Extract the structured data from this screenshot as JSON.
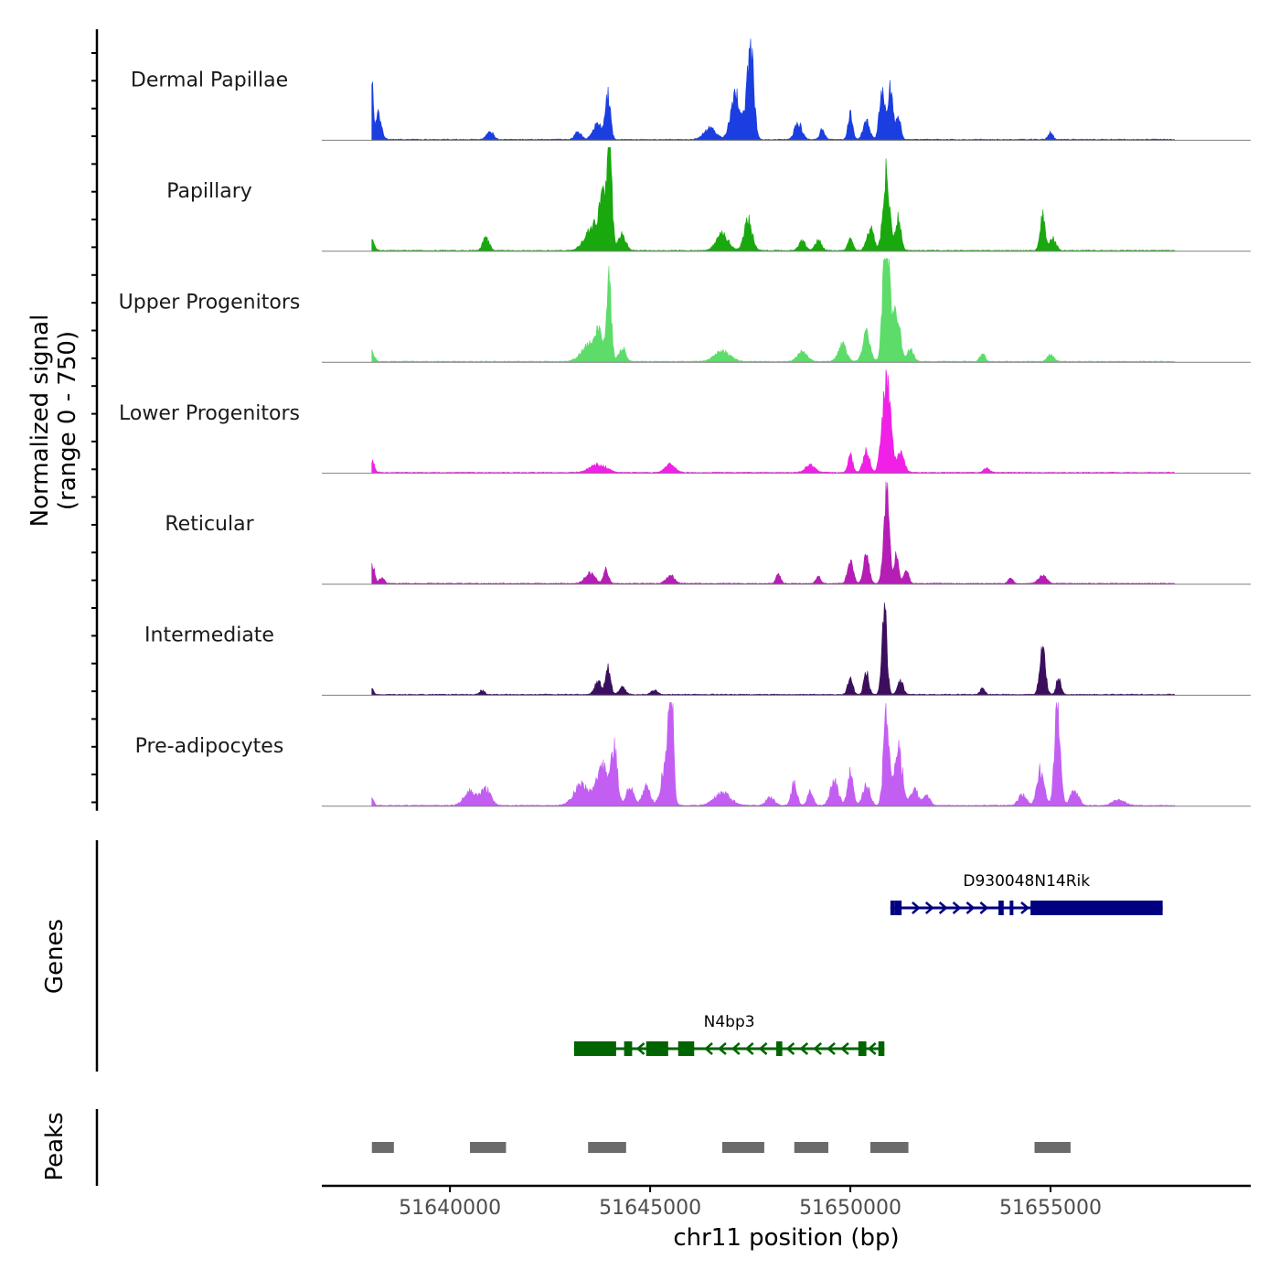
{
  "chart_data": {
    "type": "area",
    "description_kind": "coverage tracks",
    "y_axis_title_line1": "Normalized signal",
    "y_axis_title_line2": "(range 0 - 750)",
    "ylim": [
      0,
      750
    ],
    "x_axis_title": "chr11 position (bp)",
    "xlim": [
      51636800,
      51660000
    ],
    "x_ticks": [
      51640000,
      51645000,
      51650000,
      51655000
    ],
    "x_tick_labels": [
      "51640000",
      "51645000",
      "51650000",
      "51655000"
    ],
    "region_start": 51638050,
    "region_end": 51658100,
    "tracks": [
      {
        "name": "Dermal Papillae",
        "color": "#1a3ee0",
        "peaks": [
          [
            51638050,
            400,
            30
          ],
          [
            51638200,
            180,
            80
          ],
          [
            51641000,
            60,
            80
          ],
          [
            51643200,
            60,
            80
          ],
          [
            51643700,
            110,
            120
          ],
          [
            51643950,
            300,
            60
          ],
          [
            51646500,
            80,
            150
          ],
          [
            51647150,
            310,
            130
          ],
          [
            51647500,
            650,
            85
          ],
          [
            51648700,
            120,
            90
          ],
          [
            51649300,
            80,
            60
          ],
          [
            51650000,
            170,
            60
          ],
          [
            51650400,
            130,
            80
          ],
          [
            51650800,
            380,
            70
          ],
          [
            51651000,
            380,
            60
          ],
          [
            51651200,
            150,
            60
          ],
          [
            51655000,
            50,
            60
          ]
        ]
      },
      {
        "name": "Papillary",
        "color": "#19a80d",
        "peaks": [
          [
            51638050,
            80,
            60
          ],
          [
            51640900,
            90,
            80
          ],
          [
            51643600,
            180,
            200
          ],
          [
            51643800,
            320,
            60
          ],
          [
            51643980,
            820,
            60
          ],
          [
            51644300,
            120,
            90
          ],
          [
            51646800,
            120,
            150
          ],
          [
            51647450,
            220,
            100
          ],
          [
            51648800,
            70,
            80
          ],
          [
            51649200,
            70,
            80
          ],
          [
            51650000,
            100,
            60
          ],
          [
            51650500,
            160,
            90
          ],
          [
            51650900,
            550,
            80
          ],
          [
            51651200,
            230,
            70
          ],
          [
            51654800,
            250,
            60
          ],
          [
            51655050,
            90,
            80
          ]
        ]
      },
      {
        "name": "Upper Progenitors",
        "color": "#5ddc6a",
        "peaks": [
          [
            51638050,
            70,
            60
          ],
          [
            51643500,
            120,
            200
          ],
          [
            51643720,
            180,
            80
          ],
          [
            51643970,
            600,
            60
          ],
          [
            51644300,
            100,
            80
          ],
          [
            51646800,
            70,
            200
          ],
          [
            51648800,
            70,
            120
          ],
          [
            51649800,
            120,
            100
          ],
          [
            51650400,
            200,
            90
          ],
          [
            51650900,
            980,
            80
          ],
          [
            51651150,
            380,
            90
          ],
          [
            51651500,
            90,
            80
          ],
          [
            51653300,
            60,
            60
          ],
          [
            51655000,
            50,
            80
          ]
        ]
      },
      {
        "name": "Lower Progenitors",
        "color": "#f020e6",
        "peaks": [
          [
            51638050,
            90,
            60
          ],
          [
            51643700,
            60,
            200
          ],
          [
            51645500,
            60,
            120
          ],
          [
            51649000,
            50,
            120
          ],
          [
            51650000,
            120,
            60
          ],
          [
            51650400,
            150,
            80
          ],
          [
            51650900,
            700,
            100
          ],
          [
            51651250,
            150,
            90
          ],
          [
            51653400,
            30,
            80
          ]
        ]
      },
      {
        "name": "Reticular",
        "color": "#b41eb4",
        "peaks": [
          [
            51638050,
            150,
            60
          ],
          [
            51638300,
            40,
            60
          ],
          [
            51643500,
            80,
            120
          ],
          [
            51643900,
            100,
            60
          ],
          [
            51645500,
            60,
            100
          ],
          [
            51648200,
            60,
            60
          ],
          [
            51649200,
            50,
            60
          ],
          [
            51650000,
            160,
            70
          ],
          [
            51650400,
            220,
            70
          ],
          [
            51650900,
            650,
            70
          ],
          [
            51651150,
            200,
            60
          ],
          [
            51651400,
            100,
            60
          ],
          [
            51654000,
            40,
            60
          ],
          [
            51654800,
            60,
            100
          ]
        ]
      },
      {
        "name": "Intermediate",
        "color": "#3b0f5e",
        "peaks": [
          [
            51638050,
            50,
            40
          ],
          [
            51643700,
            90,
            90
          ],
          [
            51643950,
            200,
            60
          ],
          [
            51644300,
            50,
            80
          ],
          [
            51645100,
            30,
            80
          ],
          [
            51640800,
            30,
            60
          ],
          [
            51650000,
            120,
            60
          ],
          [
            51650400,
            170,
            60
          ],
          [
            51650850,
            650,
            60
          ],
          [
            51651250,
            100,
            70
          ],
          [
            51653300,
            40,
            60
          ],
          [
            51654800,
            320,
            70
          ],
          [
            51655200,
            110,
            60
          ]
        ]
      },
      {
        "name": "Pre-adipocytes",
        "color": "#c35ef3",
        "peaks": [
          [
            51638050,
            50,
            50
          ],
          [
            51640500,
            100,
            150
          ],
          [
            51640900,
            120,
            120
          ],
          [
            51643300,
            150,
            200
          ],
          [
            51643800,
            300,
            120
          ],
          [
            51644100,
            420,
            80
          ],
          [
            51644500,
            130,
            90
          ],
          [
            51644900,
            130,
            100
          ],
          [
            51645400,
            320,
            110
          ],
          [
            51645520,
            780,
            55
          ],
          [
            51646800,
            90,
            200
          ],
          [
            51648000,
            60,
            100
          ],
          [
            51648600,
            160,
            70
          ],
          [
            51649000,
            110,
            70
          ],
          [
            51649600,
            170,
            100
          ],
          [
            51650000,
            230,
            70
          ],
          [
            51650400,
            150,
            90
          ],
          [
            51650900,
            650,
            70
          ],
          [
            51651200,
            400,
            100
          ],
          [
            51651600,
            120,
            90
          ],
          [
            51651900,
            80,
            80
          ],
          [
            51654300,
            80,
            100
          ],
          [
            51654750,
            250,
            90
          ],
          [
            51655170,
            780,
            70
          ],
          [
            51655600,
            110,
            100
          ],
          [
            51656700,
            40,
            150
          ]
        ]
      }
    ],
    "genes_title": "Genes",
    "genes": [
      {
        "name": "D930048N14Rik",
        "color": "#000080",
        "strand": "+",
        "start": 51651000,
        "end": 51657800,
        "exons": [
          [
            51651000,
            51651100
          ],
          [
            51651100,
            51651280
          ],
          [
            51653700,
            51653830
          ],
          [
            51653980,
            51654060
          ],
          [
            51654500,
            51657800
          ]
        ],
        "row": "upper"
      },
      {
        "name": "N4bp3",
        "color": "#006400",
        "strand": "-",
        "start": 51643100,
        "end": 51650850,
        "exons": [
          [
            51643100,
            51644150
          ],
          [
            51644350,
            51644550
          ],
          [
            51644900,
            51645450
          ],
          [
            51645700,
            51646100
          ],
          [
            51648150,
            51648300
          ],
          [
            51650200,
            51650400
          ],
          [
            51650700,
            51650850
          ]
        ],
        "row": "lower"
      }
    ],
    "peaks_title": "Peaks",
    "peak_regions": [
      [
        51638050,
        51638600
      ],
      [
        51640500,
        51641400
      ],
      [
        51643450,
        51644400
      ],
      [
        51646800,
        51647850
      ],
      [
        51648600,
        51649450
      ],
      [
        51650500,
        51651450
      ],
      [
        51654600,
        51655500
      ]
    ],
    "peak_color": "#6b6b6b"
  }
}
